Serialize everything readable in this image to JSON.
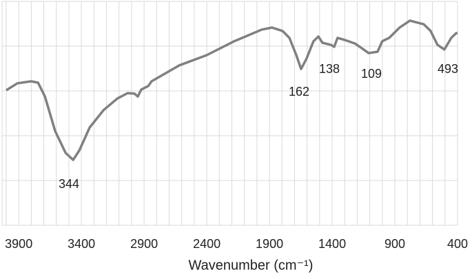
{
  "chart_data": {
    "type": "line",
    "x_label": "Wavenumber (cm⁻¹)",
    "x": [
      4000,
      3911,
      3801,
      3746,
      3691,
      3609,
      3526,
      3466,
      3416,
      3334,
      3224,
      3114,
      3032,
      2977,
      2950,
      2923,
      2867,
      2840,
      2620,
      2400,
      2181,
      1961,
      1879,
      1796,
      1741,
      1686,
      1648,
      1604,
      1549,
      1510,
      1477,
      1411,
      1384,
      1357,
      1302,
      1219,
      1164,
      1109,
      1038,
      1000,
      945,
      862,
      780,
      670,
      615,
      560,
      505,
      450,
      411,
      400
    ],
    "series": [
      {
        "color": "#808080",
        "values": [
          60.3,
          63.4,
          64.3,
          63.7,
          57.5,
          42,
          32.3,
          29.2,
          33.5,
          43.7,
          51.4,
          56.6,
          59,
          58.8,
          57.5,
          60.6,
          62.2,
          64.3,
          71.4,
          76,
          82.2,
          87.4,
          88.3,
          86.8,
          83.7,
          76,
          69.8,
          74.5,
          82.2,
          84.3,
          81.5,
          80.6,
          79.7,
          83.7,
          82.8,
          81.2,
          79.1,
          76.9,
          77.5,
          82.2,
          83.7,
          88.3,
          91.4,
          89.8,
          86.8,
          80.6,
          78.5,
          83.7,
          85.8,
          85.8
        ]
      }
    ],
    "annotations": [
      "344",
      "162",
      "138",
      "109",
      "493"
    ],
    "xlim": [
      4000,
      400
    ],
    "xticks": [
      3900,
      3400,
      2900,
      2400,
      1900,
      1400,
      900,
      400
    ],
    "xgrid_step": 100,
    "ylim": [
      0,
      100
    ],
    "yticks": [
      0,
      20,
      40,
      60,
      80,
      100
    ],
    "show_ytick_labels": false,
    "grid": true
  }
}
